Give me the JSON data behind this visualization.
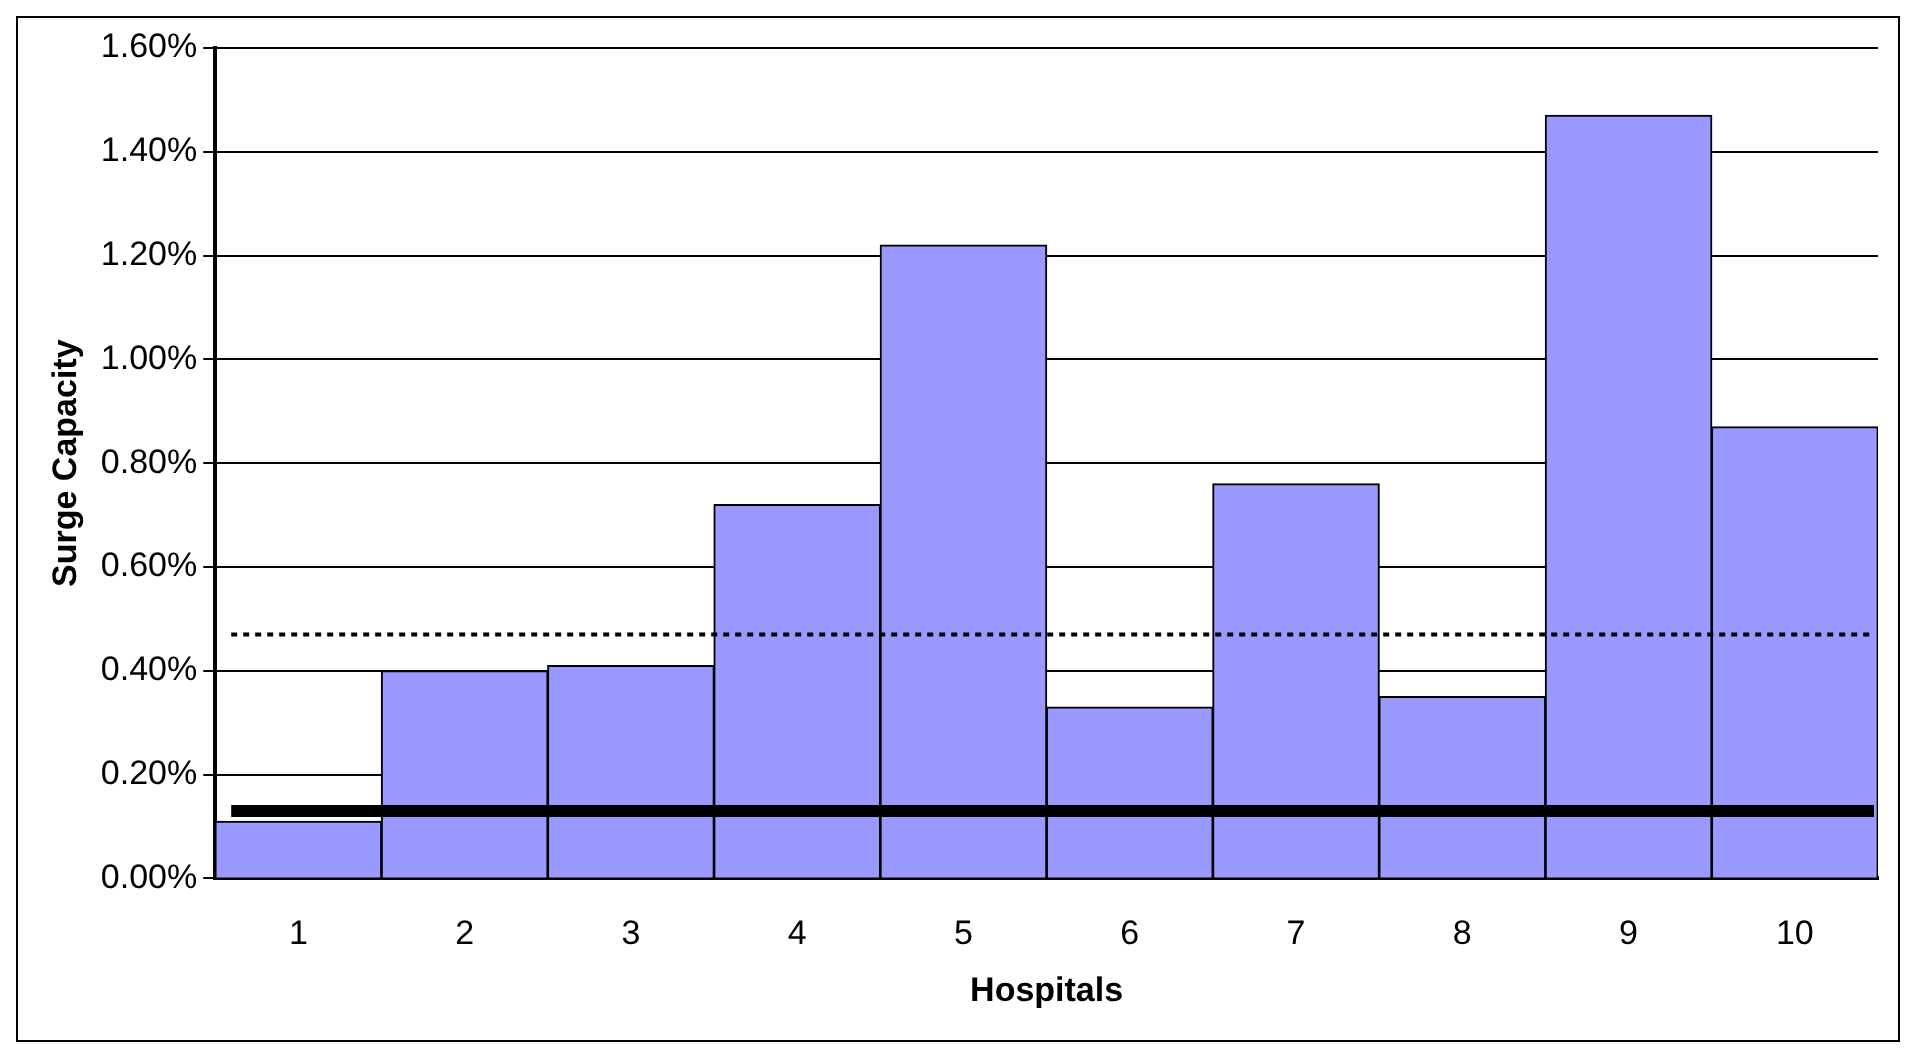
{
  "chart_data": {
    "type": "bar",
    "xlabel": "Hospitals",
    "ylabel": "Surge Capacity",
    "categories": [
      "1",
      "2",
      "3",
      "4",
      "5",
      "6",
      "7",
      "8",
      "9",
      "10"
    ],
    "values": [
      0.11,
      0.4,
      0.41,
      0.72,
      1.22,
      0.33,
      0.76,
      0.35,
      1.47,
      0.87
    ],
    "color": "#9999ff",
    "ylim": [
      0,
      1.6
    ],
    "yticks": [
      {
        "value": 0,
        "label": "0.00%"
      },
      {
        "value": 0.2,
        "label": "0.20%"
      },
      {
        "value": 0.4,
        "label": "0.40%"
      },
      {
        "value": 0.6,
        "label": "0.60%"
      },
      {
        "value": 0.8,
        "label": "0.80%"
      },
      {
        "value": 1.0,
        "label": "1.00%"
      },
      {
        "value": 1.2,
        "label": "1.20%"
      },
      {
        "value": 1.4,
        "label": "1.40%"
      },
      {
        "value": 1.6,
        "label": "1.60%"
      }
    ],
    "ref_lines": [
      {
        "axis": "y",
        "value": 0.47,
        "color": "#000000",
        "line_style": "dotted"
      },
      {
        "axis": "y",
        "value": 0.13,
        "color": "#000000",
        "line_style": "solid"
      }
    ],
    "grid": "y",
    "legend": false
  }
}
